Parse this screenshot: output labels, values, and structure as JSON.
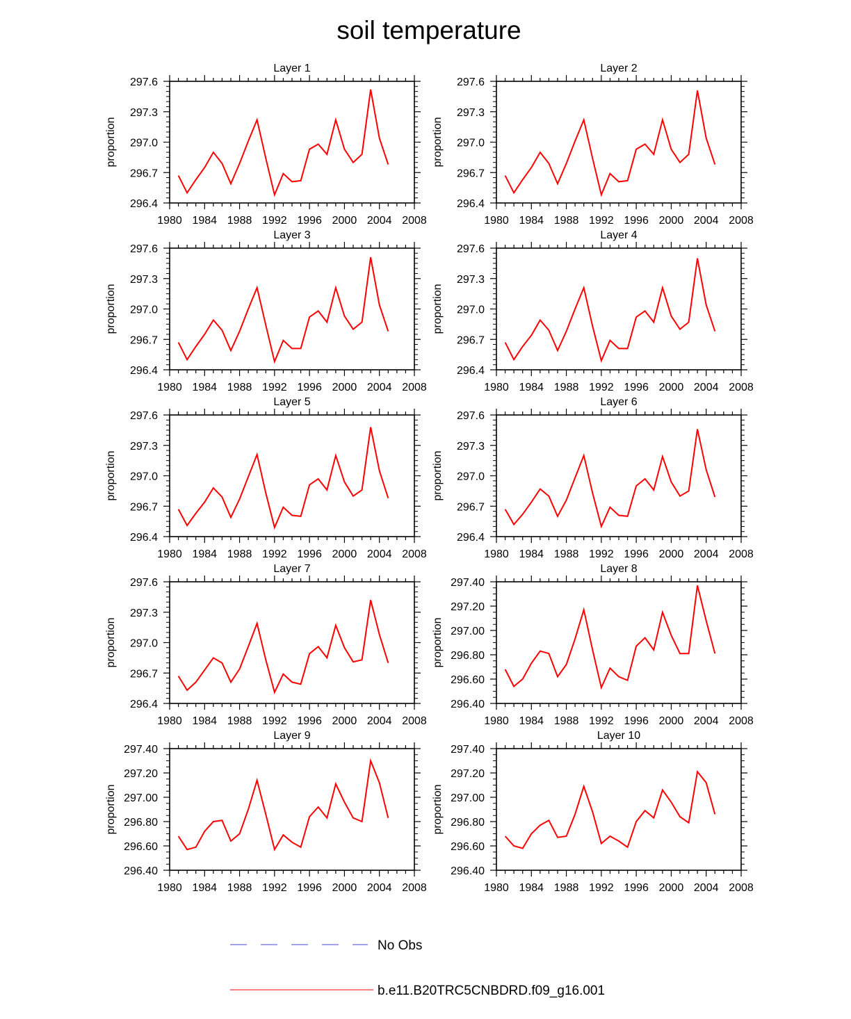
{
  "title": "soil temperature",
  "colors": {
    "model_line": "#ff0000",
    "obs_line": "#4444cc",
    "axis": "#000000"
  },
  "legend": {
    "obs_label": "No Obs",
    "model_label": "b.e11.B20TRC5CNBDRD.f09_g16.001"
  },
  "chart_data": [
    {
      "type": "line",
      "title": "Layer 1",
      "xlabel": "",
      "ylabel": "proportion",
      "xlim": [
        1980,
        2008
      ],
      "ylim": [
        296.4,
        297.6
      ],
      "xticks": [
        "1980",
        "1984",
        "1988",
        "1992",
        "1996",
        "2000",
        "2004",
        "2008"
      ],
      "yticks": [
        "296.4",
        "296.7",
        "297.0",
        "297.3",
        "297.6"
      ],
      "series": [
        {
          "name": "b.e11.B20TRC5CNBDRD.f09_g16.001",
          "x": [
            1981,
            1982,
            1983,
            1984,
            1985,
            1986,
            1987,
            1988,
            1989,
            1990,
            1991,
            1992,
            1993,
            1994,
            1995,
            1996,
            1997,
            1998,
            1999,
            2000,
            2001,
            2002,
            2003,
            2004,
            2005
          ],
          "values": [
            296.67,
            296.5,
            296.63,
            296.75,
            296.9,
            296.79,
            296.59,
            296.79,
            297.01,
            297.22,
            296.84,
            296.48,
            296.69,
            296.61,
            296.62,
            296.93,
            296.98,
            296.88,
            297.22,
            296.93,
            296.8,
            296.88,
            297.52,
            297.04,
            296.78
          ]
        }
      ]
    },
    {
      "type": "line",
      "title": "Layer 2",
      "xlabel": "",
      "ylabel": "proportion",
      "xlim": [
        1980,
        2008
      ],
      "ylim": [
        296.4,
        297.6
      ],
      "xticks": [
        "1980",
        "1984",
        "1988",
        "1992",
        "1996",
        "2000",
        "2004",
        "2008"
      ],
      "yticks": [
        "296.4",
        "296.7",
        "297.0",
        "297.3",
        "297.6"
      ],
      "series": [
        {
          "name": "b.e11.B20TRC5CNBDRD.f09_g16.001",
          "x": [
            1981,
            1982,
            1983,
            1984,
            1985,
            1986,
            1987,
            1988,
            1989,
            1990,
            1991,
            1992,
            1993,
            1994,
            1995,
            1996,
            1997,
            1998,
            1999,
            2000,
            2001,
            2002,
            2003,
            2004,
            2005
          ],
          "values": [
            296.67,
            296.5,
            296.63,
            296.75,
            296.9,
            296.79,
            296.59,
            296.79,
            297.01,
            297.22,
            296.84,
            296.48,
            296.69,
            296.61,
            296.62,
            296.93,
            296.98,
            296.88,
            297.22,
            296.93,
            296.8,
            296.88,
            297.51,
            297.04,
            296.78
          ]
        }
      ]
    },
    {
      "type": "line",
      "title": "Layer 3",
      "xlabel": "",
      "ylabel": "proportion",
      "xlim": [
        1980,
        2008
      ],
      "ylim": [
        296.4,
        297.6
      ],
      "xticks": [
        "1980",
        "1984",
        "1988",
        "1992",
        "1996",
        "2000",
        "2004",
        "2008"
      ],
      "yticks": [
        "296.4",
        "296.7",
        "297.0",
        "297.3",
        "297.6"
      ],
      "series": [
        {
          "name": "b.e11.B20TRC5CNBDRD.f09_g16.001",
          "x": [
            1981,
            1982,
            1983,
            1984,
            1985,
            1986,
            1987,
            1988,
            1989,
            1990,
            1991,
            1992,
            1993,
            1994,
            1995,
            1996,
            1997,
            1998,
            1999,
            2000,
            2001,
            2002,
            2003,
            2004,
            2005
          ],
          "values": [
            296.67,
            296.5,
            296.63,
            296.75,
            296.89,
            296.79,
            296.59,
            296.78,
            297.0,
            297.21,
            296.84,
            296.48,
            296.69,
            296.61,
            296.61,
            296.92,
            296.98,
            296.87,
            297.21,
            296.93,
            296.8,
            296.87,
            297.51,
            297.04,
            296.78
          ]
        }
      ]
    },
    {
      "type": "line",
      "title": "Layer 4",
      "xlabel": "",
      "ylabel": "proportion",
      "xlim": [
        1980,
        2008
      ],
      "ylim": [
        296.4,
        297.6
      ],
      "xticks": [
        "1980",
        "1984",
        "1988",
        "1992",
        "1996",
        "2000",
        "2004",
        "2008"
      ],
      "yticks": [
        "296.4",
        "296.7",
        "297.0",
        "297.3",
        "297.6"
      ],
      "series": [
        {
          "name": "b.e11.B20TRC5CNBDRD.f09_g16.001",
          "x": [
            1981,
            1982,
            1983,
            1984,
            1985,
            1986,
            1987,
            1988,
            1989,
            1990,
            1991,
            1992,
            1993,
            1994,
            1995,
            1996,
            1997,
            1998,
            1999,
            2000,
            2001,
            2002,
            2003,
            2004,
            2005
          ],
          "values": [
            296.67,
            296.5,
            296.63,
            296.74,
            296.89,
            296.79,
            296.59,
            296.78,
            297.0,
            297.21,
            296.83,
            296.49,
            296.69,
            296.61,
            296.61,
            296.92,
            296.98,
            296.87,
            297.21,
            296.93,
            296.8,
            296.87,
            297.5,
            297.04,
            296.78
          ]
        }
      ]
    },
    {
      "type": "line",
      "title": "Layer 5",
      "xlabel": "",
      "ylabel": "proportion",
      "xlim": [
        1980,
        2008
      ],
      "ylim": [
        296.4,
        297.6
      ],
      "xticks": [
        "1980",
        "1984",
        "1988",
        "1992",
        "1996",
        "2000",
        "2004",
        "2008"
      ],
      "yticks": [
        "296.4",
        "296.7",
        "297.0",
        "297.3",
        "297.6"
      ],
      "series": [
        {
          "name": "b.e11.B20TRC5CNBDRD.f09_g16.001",
          "x": [
            1981,
            1982,
            1983,
            1984,
            1985,
            1986,
            1987,
            1988,
            1989,
            1990,
            1991,
            1992,
            1993,
            1994,
            1995,
            1996,
            1997,
            1998,
            1999,
            2000,
            2001,
            2002,
            2003,
            2004,
            2005
          ],
          "values": [
            296.67,
            296.51,
            296.63,
            296.74,
            296.88,
            296.79,
            296.59,
            296.77,
            296.99,
            297.21,
            296.83,
            296.49,
            296.69,
            296.61,
            296.6,
            296.91,
            296.97,
            296.86,
            297.2,
            296.94,
            296.8,
            296.86,
            297.48,
            297.05,
            296.78
          ]
        }
      ]
    },
    {
      "type": "line",
      "title": "Layer 6",
      "xlabel": "",
      "ylabel": "proportion",
      "xlim": [
        1980,
        2008
      ],
      "ylim": [
        296.4,
        297.6
      ],
      "xticks": [
        "1980",
        "1984",
        "1988",
        "1992",
        "1996",
        "2000",
        "2004",
        "2008"
      ],
      "yticks": [
        "296.4",
        "296.7",
        "297.0",
        "297.3",
        "297.6"
      ],
      "series": [
        {
          "name": "b.e11.B20TRC5CNBDRD.f09_g16.001",
          "x": [
            1981,
            1982,
            1983,
            1984,
            1985,
            1986,
            1987,
            1988,
            1989,
            1990,
            1991,
            1992,
            1993,
            1994,
            1995,
            1996,
            1997,
            1998,
            1999,
            2000,
            2001,
            2002,
            2003,
            2004,
            2005
          ],
          "values": [
            296.67,
            296.52,
            296.62,
            296.74,
            296.87,
            296.8,
            296.6,
            296.76,
            296.98,
            297.2,
            296.83,
            296.5,
            296.69,
            296.61,
            296.6,
            296.9,
            296.97,
            296.86,
            297.19,
            296.94,
            296.8,
            296.85,
            297.46,
            297.06,
            296.79
          ]
        }
      ]
    },
    {
      "type": "line",
      "title": "Layer 7",
      "xlabel": "",
      "ylabel": "proportion",
      "xlim": [
        1980,
        2008
      ],
      "ylim": [
        296.4,
        297.6
      ],
      "xticks": [
        "1980",
        "1984",
        "1988",
        "1992",
        "1996",
        "2000",
        "2004",
        "2008"
      ],
      "yticks": [
        "296.4",
        "296.7",
        "297.0",
        "297.3",
        "297.6"
      ],
      "series": [
        {
          "name": "b.e11.B20TRC5CNBDRD.f09_g16.001",
          "x": [
            1981,
            1982,
            1983,
            1984,
            1985,
            1986,
            1987,
            1988,
            1989,
            1990,
            1991,
            1992,
            1993,
            1994,
            1995,
            1996,
            1997,
            1998,
            1999,
            2000,
            2001,
            2002,
            2003,
            2004,
            2005
          ],
          "values": [
            296.67,
            296.53,
            296.61,
            296.73,
            296.85,
            296.8,
            296.61,
            296.74,
            296.96,
            297.19,
            296.83,
            296.51,
            296.69,
            296.61,
            296.59,
            296.89,
            296.96,
            296.85,
            297.17,
            296.95,
            296.81,
            296.83,
            297.42,
            297.08,
            296.8
          ]
        }
      ]
    },
    {
      "type": "line",
      "title": "Layer 8",
      "xlabel": "",
      "ylabel": "proportion",
      "xlim": [
        1980,
        2008
      ],
      "ylim": [
        296.4,
        297.4
      ],
      "xticks": [
        "1980",
        "1984",
        "1988",
        "1992",
        "1996",
        "2000",
        "2004",
        "2008"
      ],
      "yticks": [
        "296.40",
        "296.60",
        "296.80",
        "297.00",
        "297.20",
        "297.40"
      ],
      "series": [
        {
          "name": "b.e11.B20TRC5CNBDRD.f09_g16.001",
          "x": [
            1981,
            1982,
            1983,
            1984,
            1985,
            1986,
            1987,
            1988,
            1989,
            1990,
            1991,
            1992,
            1993,
            1994,
            1995,
            1996,
            1997,
            1998,
            1999,
            2000,
            2001,
            2002,
            2003,
            2004,
            2005
          ],
          "values": [
            296.68,
            296.54,
            296.6,
            296.73,
            296.83,
            296.81,
            296.62,
            296.72,
            296.93,
            297.17,
            296.84,
            296.53,
            296.69,
            296.62,
            296.59,
            296.87,
            296.94,
            296.84,
            297.15,
            296.96,
            296.81,
            296.81,
            297.37,
            297.08,
            296.81
          ]
        }
      ]
    },
    {
      "type": "line",
      "title": "Layer 9",
      "xlabel": "",
      "ylabel": "proportion",
      "xlim": [
        1980,
        2008
      ],
      "ylim": [
        296.4,
        297.4
      ],
      "xticks": [
        "1980",
        "1984",
        "1988",
        "1992",
        "1996",
        "2000",
        "2004",
        "2008"
      ],
      "yticks": [
        "296.40",
        "296.60",
        "296.80",
        "297.00",
        "297.20",
        "297.40"
      ],
      "series": [
        {
          "name": "b.e11.B20TRC5CNBDRD.f09_g16.001",
          "x": [
            1981,
            1982,
            1983,
            1984,
            1985,
            1986,
            1987,
            1988,
            1989,
            1990,
            1991,
            1992,
            1993,
            1994,
            1995,
            1996,
            1997,
            1998,
            1999,
            2000,
            2001,
            2002,
            2003,
            2004,
            2005
          ],
          "values": [
            296.68,
            296.57,
            296.59,
            296.72,
            296.8,
            296.81,
            296.64,
            296.7,
            296.9,
            297.14,
            296.86,
            296.57,
            296.69,
            296.63,
            296.59,
            296.84,
            296.92,
            296.83,
            297.11,
            296.96,
            296.83,
            296.8,
            297.3,
            297.12,
            296.83
          ]
        }
      ]
    },
    {
      "type": "line",
      "title": "Layer 10",
      "xlabel": "",
      "ylabel": "proportion",
      "xlim": [
        1980,
        2008
      ],
      "ylim": [
        296.4,
        297.4
      ],
      "xticks": [
        "1980",
        "1984",
        "1988",
        "1992",
        "1996",
        "2000",
        "2004",
        "2008"
      ],
      "yticks": [
        "296.40",
        "296.60",
        "296.80",
        "297.00",
        "297.20",
        "297.40"
      ],
      "series": [
        {
          "name": "b.e11.B20TRC5CNBDRD.f09_g16.001",
          "x": [
            1981,
            1982,
            1983,
            1984,
            1985,
            1986,
            1987,
            1988,
            1989,
            1990,
            1991,
            1992,
            1993,
            1994,
            1995,
            1996,
            1997,
            1998,
            1999,
            2000,
            2001,
            2002,
            2003,
            2004,
            2005
          ],
          "values": [
            296.68,
            296.6,
            296.58,
            296.7,
            296.77,
            296.81,
            296.67,
            296.68,
            296.86,
            297.09,
            296.88,
            296.62,
            296.68,
            296.64,
            296.59,
            296.8,
            296.89,
            296.83,
            297.06,
            296.96,
            296.84,
            296.79,
            297.21,
            297.12,
            296.86
          ]
        }
      ]
    }
  ]
}
